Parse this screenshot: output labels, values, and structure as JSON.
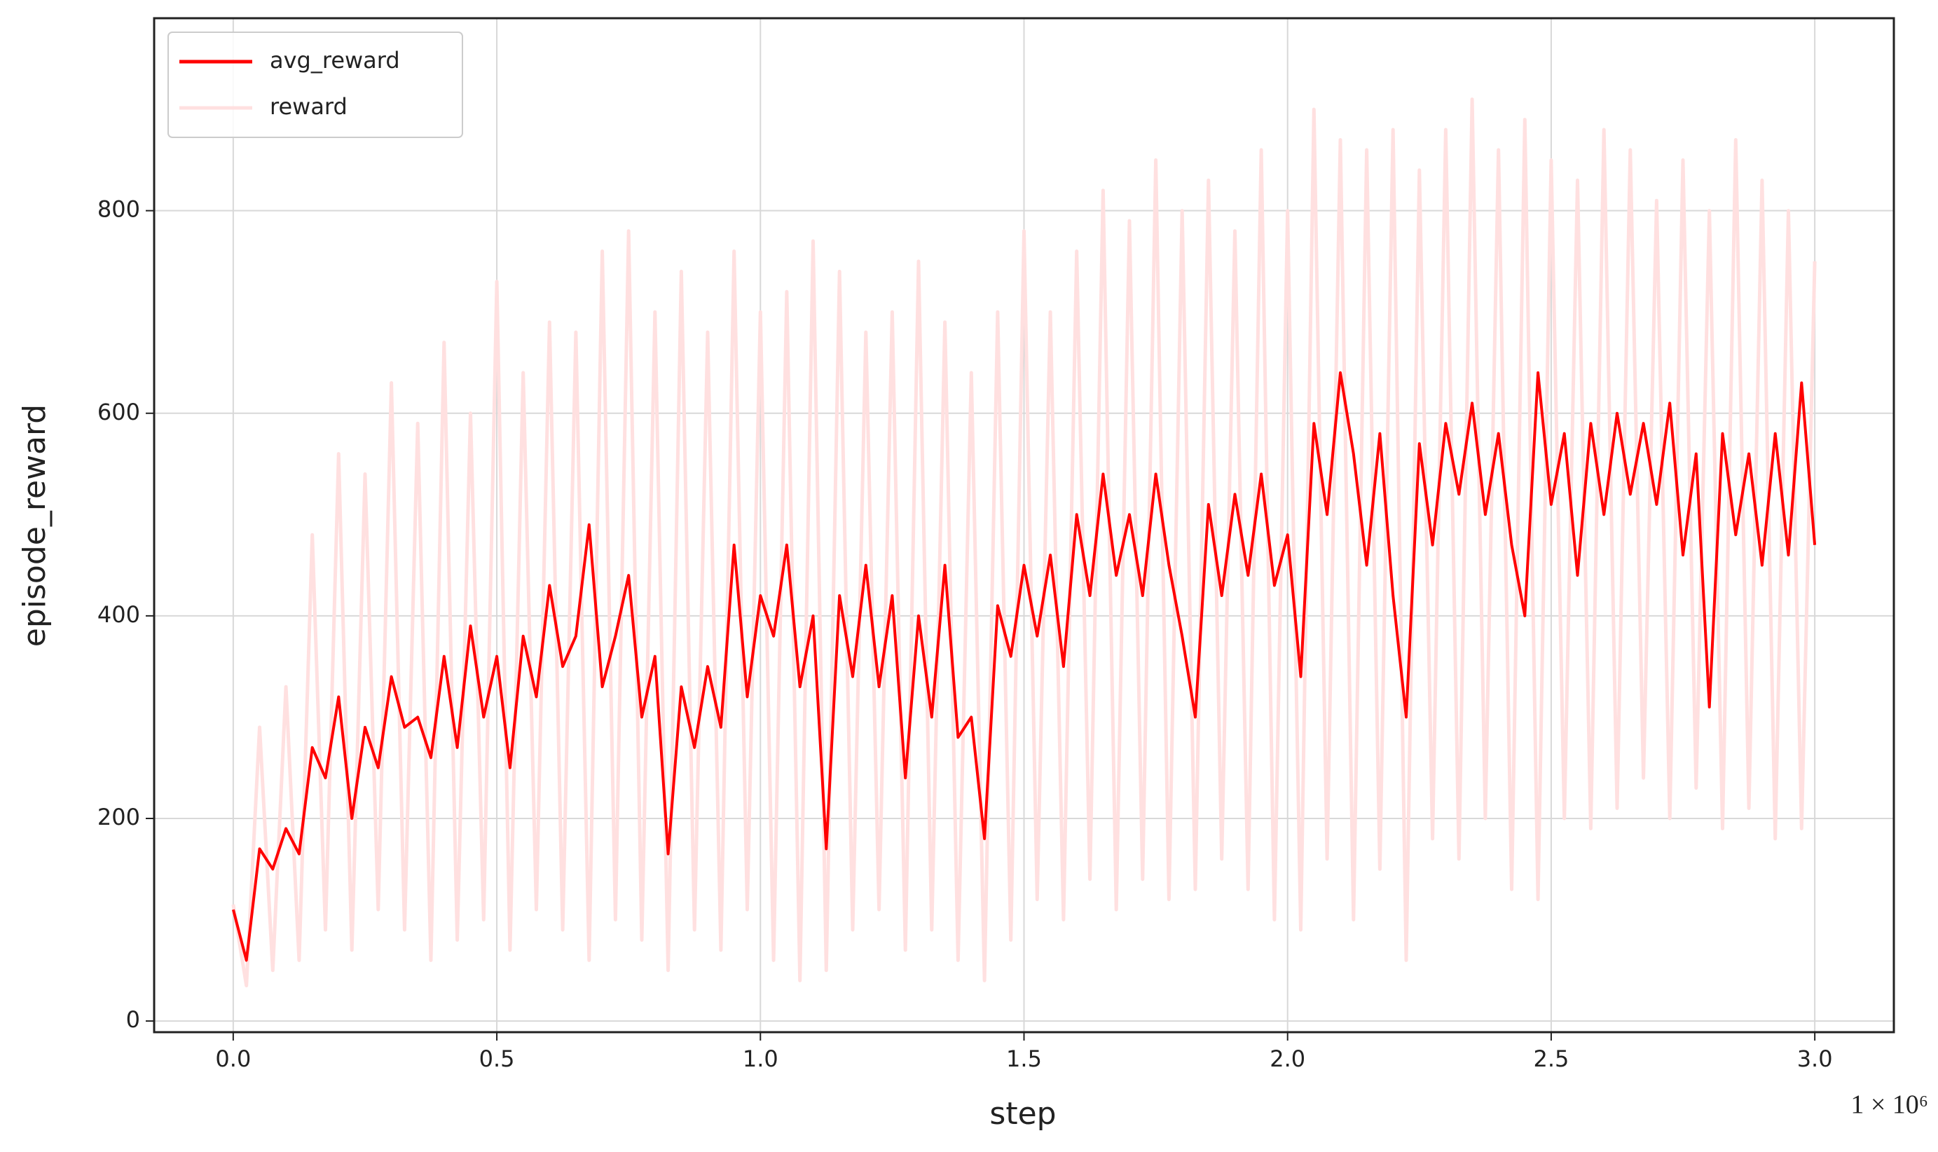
{
  "chart_data": {
    "type": "line",
    "xlabel": "step",
    "ylabel": "episode_reward",
    "x_offset_label": "1 × 10⁶",
    "x": [
      0,
      0.025,
      0.05,
      0.075,
      0.1,
      0.125,
      0.15,
      0.175,
      0.2,
      0.225,
      0.25,
      0.275,
      0.3,
      0.325,
      0.35,
      0.375,
      0.4,
      0.425,
      0.45,
      0.475,
      0.5,
      0.525,
      0.55,
      0.575,
      0.6,
      0.625,
      0.65,
      0.675,
      0.7,
      0.725,
      0.75,
      0.775,
      0.8,
      0.825,
      0.85,
      0.875,
      0.9,
      0.925,
      0.95,
      0.975,
      1.0,
      1.025,
      1.05,
      1.075,
      1.1,
      1.125,
      1.15,
      1.175,
      1.2,
      1.225,
      1.25,
      1.275,
      1.3,
      1.325,
      1.35,
      1.375,
      1.4,
      1.425,
      1.45,
      1.475,
      1.5,
      1.525,
      1.55,
      1.575,
      1.6,
      1.625,
      1.65,
      1.675,
      1.7,
      1.725,
      1.75,
      1.775,
      1.8,
      1.825,
      1.85,
      1.875,
      1.9,
      1.925,
      1.95,
      1.975,
      2.0,
      2.025,
      2.05,
      2.075,
      2.1,
      2.125,
      2.15,
      2.175,
      2.2,
      2.225,
      2.25,
      2.275,
      2.3,
      2.325,
      2.35,
      2.375,
      2.4,
      2.425,
      2.45,
      2.475,
      2.5,
      2.525,
      2.55,
      2.575,
      2.6,
      2.625,
      2.65,
      2.675,
      2.7,
      2.725,
      2.75,
      2.775,
      2.8,
      2.825,
      2.85,
      2.875,
      2.9,
      2.925,
      2.95,
      2.975,
      3.0
    ],
    "series": [
      {
        "name": "reward",
        "color": "#ffe0e0",
        "values": [
          115,
          35,
          290,
          50,
          330,
          60,
          480,
          90,
          560,
          70,
          540,
          110,
          630,
          90,
          590,
          60,
          670,
          80,
          600,
          100,
          730,
          70,
          640,
          110,
          690,
          90,
          680,
          60,
          760,
          100,
          780,
          80,
          700,
          50,
          740,
          90,
          680,
          70,
          760,
          110,
          700,
          60,
          720,
          40,
          770,
          50,
          740,
          90,
          680,
          110,
          700,
          70,
          750,
          90,
          690,
          60,
          640,
          40,
          700,
          80,
          780,
          120,
          700,
          100,
          760,
          140,
          820,
          110,
          790,
          140,
          850,
          120,
          800,
          130,
          830,
          160,
          780,
          130,
          860,
          100,
          800,
          90,
          900,
          160,
          870,
          100,
          860,
          150,
          880,
          60,
          840,
          180,
          880,
          160,
          910,
          200,
          860,
          130,
          890,
          120,
          850,
          200,
          830,
          190,
          880,
          210,
          860,
          240,
          810,
          200,
          850,
          230,
          800,
          190,
          870,
          210,
          830,
          180,
          800,
          190,
          750
        ]
      },
      {
        "name": "avg_reward",
        "color": "#ff0000",
        "values": [
          110,
          60,
          170,
          150,
          190,
          165,
          270,
          240,
          320,
          200,
          290,
          250,
          340,
          290,
          300,
          260,
          360,
          270,
          390,
          300,
          360,
          250,
          380,
          320,
          430,
          350,
          380,
          490,
          330,
          380,
          440,
          300,
          360,
          165,
          330,
          270,
          350,
          290,
          470,
          320,
          420,
          380,
          470,
          330,
          400,
          170,
          420,
          340,
          450,
          330,
          420,
          240,
          400,
          300,
          450,
          280,
          300,
          180,
          410,
          360,
          450,
          380,
          460,
          350,
          500,
          420,
          540,
          440,
          500,
          420,
          540,
          450,
          380,
          300,
          510,
          420,
          520,
          440,
          540,
          430,
          480,
          340,
          590,
          500,
          640,
          560,
          450,
          580,
          420,
          300,
          570,
          470,
          590,
          520,
          610,
          500,
          580,
          470,
          400,
          640,
          510,
          580,
          440,
          590,
          500,
          600,
          520,
          590,
          510,
          610,
          460,
          560,
          310,
          580,
          480,
          560,
          450,
          580,
          460,
          630,
          470
        ]
      }
    ],
    "legend_order": [
      "avg_reward",
      "reward"
    ],
    "legend": "upper left",
    "xlim": [
      -0.15,
      3.15
    ],
    "ylim": [
      -11,
      990
    ],
    "xticks": [
      {
        "value": 0,
        "label": "0.0"
      },
      {
        "value": 0.5,
        "label": "0.5"
      },
      {
        "value": 1,
        "label": "1.0"
      },
      {
        "value": 1.5,
        "label": "1.5"
      },
      {
        "value": 2,
        "label": "2.0"
      },
      {
        "value": 2.5,
        "label": "2.5"
      },
      {
        "value": 3,
        "label": "3.0"
      }
    ],
    "yticks": [
      0,
      200,
      400,
      600,
      800
    ],
    "grid": true
  }
}
